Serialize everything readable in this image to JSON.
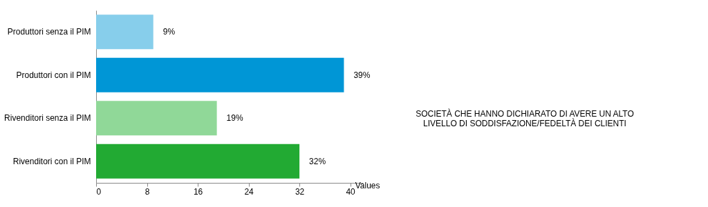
{
  "chart_data": {
    "type": "bar",
    "orientation": "horizontal",
    "title": "SOCIETÀ CHE HANNO DICHIARATO DI AVERE UN ALTO\nLIVELLO DI SODDISFAZIONE/FEDELTÀ DEI CLIENTI",
    "categories": [
      "Produttori senza il PIM",
      "Produttori con il PIM",
      "Rivenditori senza il PIM",
      "Rivenditori con il PIM"
    ],
    "values": [
      9,
      39,
      19,
      32
    ],
    "colors": [
      "#87ceeb",
      "#0096d6",
      "#90d898",
      "#22aa33"
    ],
    "value_labels": [
      "9%",
      "39%",
      "19%",
      "32%"
    ],
    "xlabel": "Values",
    "xlim": [
      0,
      42
    ],
    "xticks": [
      0,
      8,
      16,
      24,
      32,
      40
    ],
    "grid": false
  }
}
